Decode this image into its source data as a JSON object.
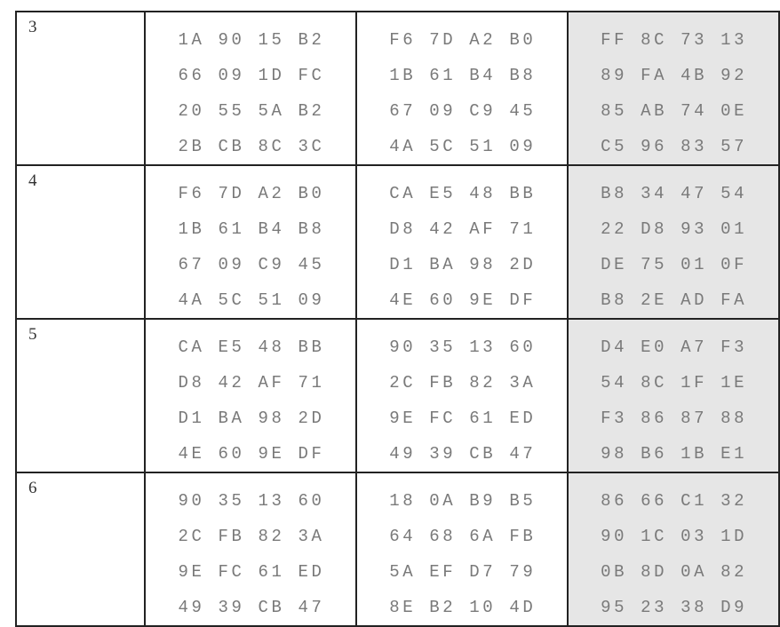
{
  "rows": [
    {
      "round": "3",
      "blocks": [
        [
          "1A 90 15 B2",
          "66 09 1D FC",
          "20 55 5A B2",
          "2B CB 8C 3C"
        ],
        [
          "F6 7D A2 B0",
          "1B 61 B4 B8",
          "67 09 C9 45",
          "4A 5C 51 09"
        ],
        [
          "FF 8C 73 13",
          "89 FA 4B 92",
          "85 AB 74 0E",
          "C5 96 83 57"
        ]
      ]
    },
    {
      "round": "4",
      "blocks": [
        [
          "F6 7D A2 B0",
          "1B 61 B4 B8",
          "67 09 C9 45",
          "4A 5C 51 09"
        ],
        [
          "CA E5 48 BB",
          "D8 42 AF 71",
          "D1 BA 98 2D",
          "4E 60 9E DF"
        ],
        [
          "B8 34 47 54",
          "22 D8 93 01",
          "DE 75 01 0F",
          "B8 2E AD FA"
        ]
      ]
    },
    {
      "round": "5",
      "blocks": [
        [
          "CA E5 48 BB",
          "D8 42 AF 71",
          "D1 BA 98 2D",
          "4E 60 9E DF"
        ],
        [
          "90 35 13 60",
          "2C FB 82 3A",
          "9E FC 61 ED",
          "49 39 CB 47"
        ],
        [
          "D4 E0 A7 F3",
          "54 8C 1F 1E",
          "F3 86 87 88",
          "98 B6 1B E1"
        ]
      ]
    },
    {
      "round": "6",
      "blocks": [
        [
          "90 35 13 60",
          "2C FB 82 3A",
          "9E FC 61 ED",
          "49 39 CB 47"
        ],
        [
          "18 0A B9 B5",
          "64 68 6A FB",
          "5A EF D7 79",
          "8E B2 10 4D"
        ],
        [
          "86 66 C1 32",
          "90 1C 03 1D",
          "0B 8D 0A 82",
          "95 23 38 D9"
        ]
      ]
    }
  ],
  "colors": {
    "shaded_column": "#e6e6e6",
    "hex_text": "#7a7a7a",
    "border": "#222222"
  }
}
